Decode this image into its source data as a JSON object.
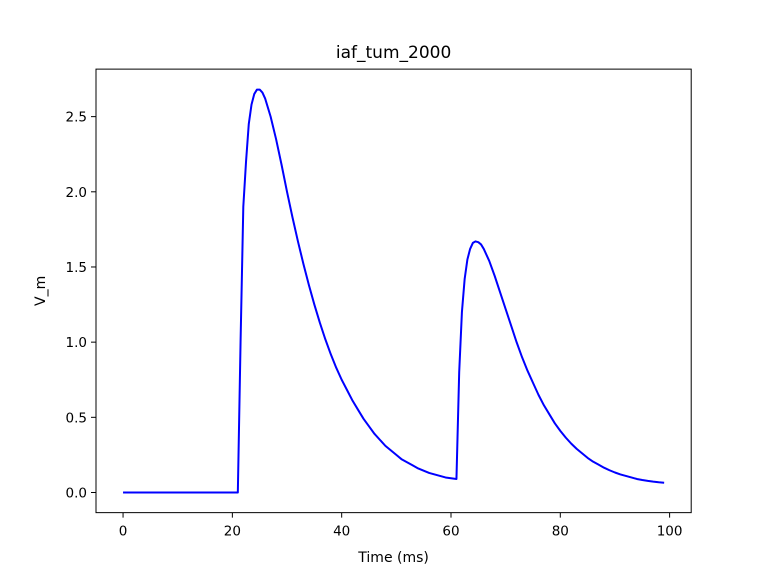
{
  "chart_data": {
    "type": "line",
    "title": "iaf_tum_2000",
    "xlabel": "Time (ms)",
    "ylabel": "V_m",
    "xlim": [
      -4.95,
      103.95
    ],
    "ylim": [
      -0.134,
      2.816
    ],
    "grid": false,
    "x_ticks": [
      0,
      20,
      40,
      60,
      80,
      100
    ],
    "x_tick_labels": [
      "0",
      "20",
      "40",
      "60",
      "80",
      "100"
    ],
    "y_ticks": [
      0.0,
      0.5,
      1.0,
      1.5,
      2.0,
      2.5
    ],
    "y_tick_labels": [
      "0.0",
      "0.5",
      "1.0",
      "1.5",
      "2.0",
      "2.5"
    ],
    "series": [
      {
        "color": "#0000ff",
        "x": [
          0,
          5,
          10,
          15,
          20,
          21,
          21.5,
          22,
          22.5,
          23,
          23.5,
          24,
          24.5,
          25,
          25.5,
          26,
          27,
          28,
          29,
          30,
          31,
          32,
          33,
          34,
          35,
          36,
          37,
          38,
          39,
          40,
          41,
          42,
          43,
          44,
          45,
          46,
          47,
          48,
          49,
          50,
          51,
          52,
          53,
          54,
          55,
          56,
          57,
          58,
          59,
          60,
          61,
          61.5,
          62,
          62.5,
          63,
          63.5,
          64,
          64.5,
          65,
          65.5,
          66,
          67,
          68,
          69,
          70,
          71,
          72,
          73,
          74,
          75,
          76,
          77,
          78,
          79,
          80,
          81,
          82,
          83,
          84,
          85,
          86,
          87,
          88,
          89,
          90,
          91,
          92,
          93,
          94,
          95,
          96,
          97,
          98,
          99
        ],
        "values": [
          0.0,
          0.0,
          0.0,
          0.0,
          0.0,
          0.0,
          1.0,
          1.9,
          2.2,
          2.45,
          2.58,
          2.65,
          2.68,
          2.68,
          2.66,
          2.62,
          2.5,
          2.35,
          2.18,
          2.0,
          1.83,
          1.67,
          1.52,
          1.38,
          1.25,
          1.13,
          1.02,
          0.92,
          0.83,
          0.75,
          0.68,
          0.61,
          0.55,
          0.49,
          0.44,
          0.39,
          0.35,
          0.31,
          0.28,
          0.25,
          0.22,
          0.2,
          0.18,
          0.16,
          0.145,
          0.13,
          0.12,
          0.11,
          0.1,
          0.095,
          0.09,
          0.8,
          1.2,
          1.42,
          1.55,
          1.62,
          1.66,
          1.67,
          1.665,
          1.65,
          1.62,
          1.54,
          1.44,
          1.33,
          1.22,
          1.11,
          1.0,
          0.9,
          0.81,
          0.73,
          0.65,
          0.58,
          0.52,
          0.46,
          0.41,
          0.365,
          0.325,
          0.29,
          0.26,
          0.23,
          0.205,
          0.185,
          0.165,
          0.148,
          0.133,
          0.12,
          0.11,
          0.1,
          0.09,
          0.083,
          0.077,
          0.072,
          0.068,
          0.065
        ]
      }
    ]
  }
}
